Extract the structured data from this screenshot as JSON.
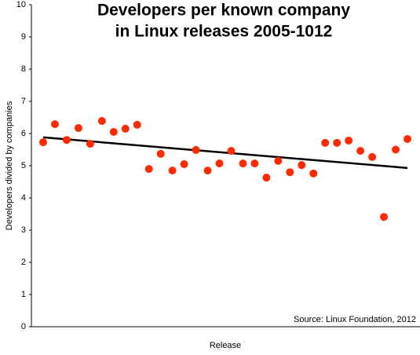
{
  "chart_data": {
    "type": "scatter",
    "title": [
      "Developers per known company",
      "in Linux releases 2005-1012"
    ],
    "x_label": "Release",
    "y_label": "Developers divided by companies",
    "annotation": "Source: Linux Foundation, 2012",
    "categories": [
      null,
      null,
      null,
      null,
      null,
      null,
      null,
      null,
      null,
      null,
      null,
      null,
      null,
      null,
      null,
      null,
      null,
      null,
      null,
      null,
      null,
      null,
      null,
      null,
      null,
      null,
      null,
      null,
      null,
      null,
      null,
      null
    ],
    "values": [
      5.73,
      6.29,
      5.8,
      6.17,
      5.68,
      6.39,
      6.05,
      6.15,
      6.27,
      4.9,
      5.37,
      4.85,
      5.05,
      5.49,
      4.85,
      5.07,
      5.46,
      5.07,
      5.07,
      4.63,
      5.15,
      4.8,
      5.02,
      4.76,
      5.71,
      5.71,
      5.78,
      5.46,
      5.27,
      3.41,
      5.5,
      5.83
    ],
    "color": "#ff2a00",
    "trend_line": {
      "start": 5.88,
      "end": 4.93,
      "color": "#000000"
    },
    "ylim": [
      0,
      10
    ],
    "yticks": [
      0,
      1,
      2,
      3,
      4,
      5,
      6,
      7,
      8,
      9,
      10
    ]
  }
}
